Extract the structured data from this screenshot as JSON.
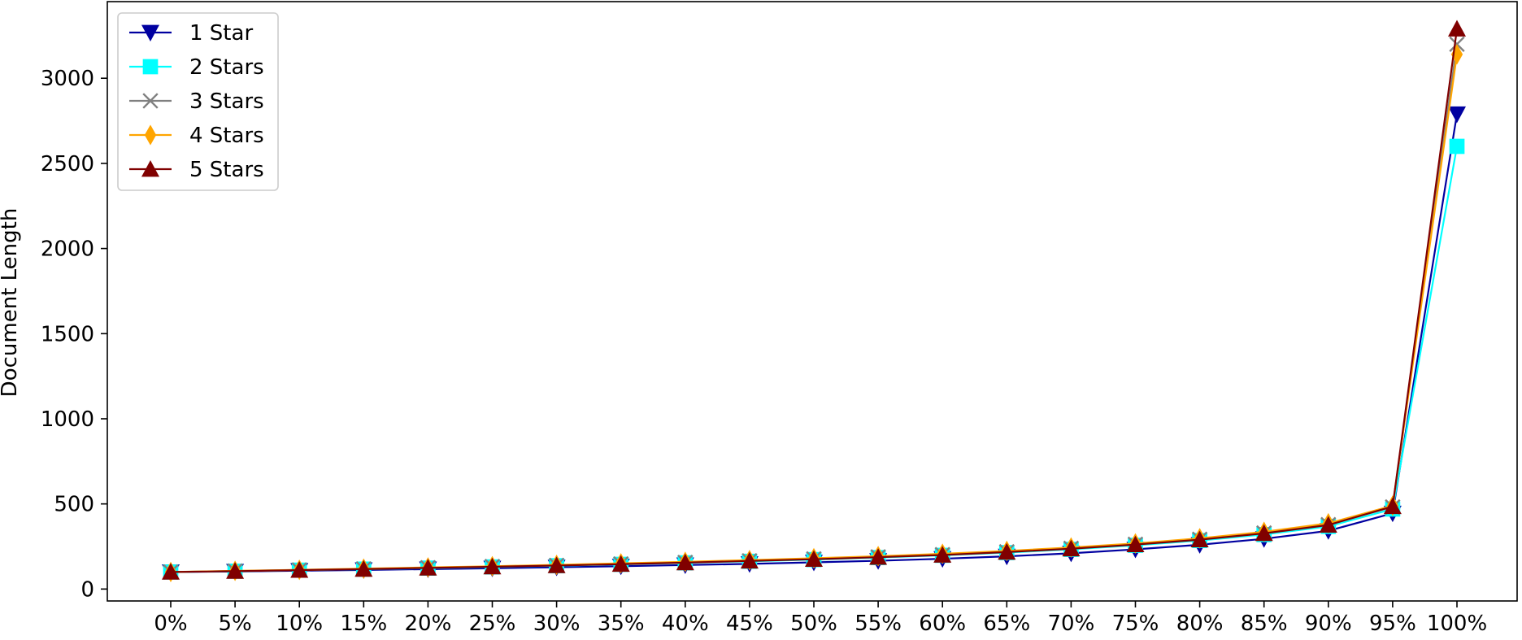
{
  "chart_data": {
    "type": "line",
    "title": "",
    "xlabel": "",
    "ylabel": "Document Length",
    "categories": [
      "0%",
      "5%",
      "10%",
      "15%",
      "20%",
      "25%",
      "30%",
      "35%",
      "40%",
      "45%",
      "50%",
      "55%",
      "60%",
      "65%",
      "70%",
      "75%",
      "80%",
      "85%",
      "90%",
      "95%",
      "100%"
    ],
    "ylim": [
      -70,
      3450
    ],
    "yticks": [
      0,
      500,
      1000,
      1500,
      2000,
      2500,
      3000
    ],
    "grid": false,
    "legend_position": "top-left",
    "series": [
      {
        "name": "1 Star",
        "color": "#0000a0",
        "marker": "triangle-down",
        "values": [
          100,
          103,
          108,
          112,
          117,
          122,
          128,
          134,
          141,
          148,
          157,
          166,
          178,
          192,
          210,
          233,
          260,
          295,
          342,
          445,
          2790
        ]
      },
      {
        "name": "2 Stars",
        "color": "#00ffff",
        "marker": "square",
        "values": [
          100,
          105,
          111,
          117,
          123,
          130,
          137,
          145,
          154,
          163,
          173,
          185,
          198,
          214,
          233,
          257,
          285,
          320,
          368,
          470,
          2600
        ]
      },
      {
        "name": "3 Stars",
        "color": "#808080",
        "marker": "x",
        "values": [
          100,
          106,
          112,
          118,
          125,
          132,
          139,
          147,
          156,
          166,
          177,
          189,
          202,
          219,
          239,
          263,
          292,
          329,
          378,
          482,
          3200
        ]
      },
      {
        "name": "4 Stars",
        "color": "#ffa500",
        "marker": "diamond",
        "values": [
          100,
          107,
          113,
          120,
          127,
          134,
          142,
          151,
          160,
          170,
          181,
          193,
          207,
          224,
          244,
          268,
          298,
          336,
          386,
          490,
          3140
        ]
      },
      {
        "name": "5 Stars",
        "color": "#800000",
        "marker": "triangle-up",
        "values": [
          100,
          105,
          111,
          117,
          124,
          131,
          138,
          146,
          155,
          165,
          175,
          187,
          200,
          217,
          237,
          261,
          290,
          327,
          376,
          485,
          3290
        ]
      }
    ]
  }
}
